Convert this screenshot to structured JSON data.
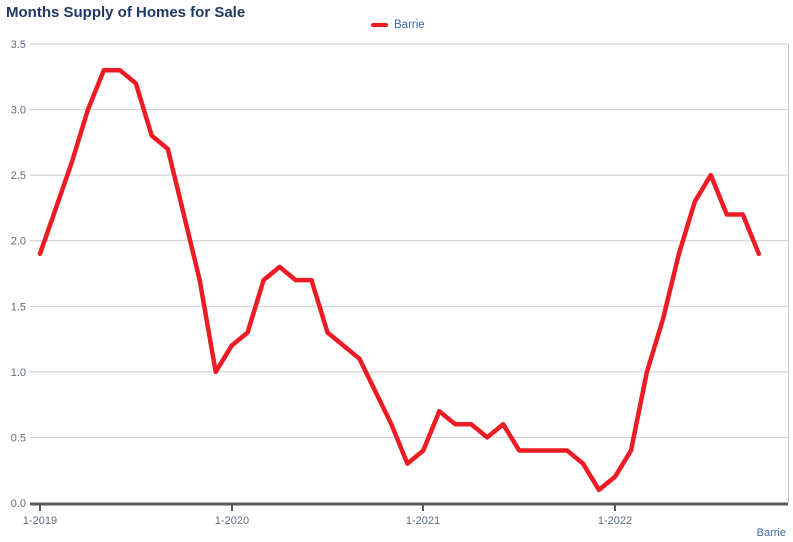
{
  "title": "Months Supply of Homes for Sale",
  "legend": {
    "items": [
      {
        "label": "Barrie",
        "color": "#ED1C24"
      }
    ]
  },
  "bottom_right_label": "Barrie",
  "colors": {
    "background": "#FFFFFF",
    "title": "#1F3864",
    "axis_tick_label": "#5D6B80",
    "blue_label": "#3E68A8",
    "gridline": "#CCCCCC",
    "axis_line": "#595959",
    "series_red": "#ED1C24"
  },
  "chart_data": {
    "type": "line",
    "title": "Months Supply of Homes for Sale",
    "xlabel": "",
    "ylabel": "",
    "ylim": [
      0,
      3.5
    ],
    "y_tick_labels": [
      "0.0",
      "0.5",
      "1.0",
      "1.5",
      "2.0",
      "2.5",
      "3.0",
      "3.5"
    ],
    "y_ticks": [
      0,
      0.5,
      1.0,
      1.5,
      2.0,
      2.5,
      3.0,
      3.5
    ],
    "x_axis_tick_labels": [
      "1-2019",
      "1-2020",
      "1-2021",
      "1-2022"
    ],
    "grid": true,
    "legend_position": "top-center",
    "series": [
      {
        "name": "Barrie",
        "color": "#ED1C24",
        "x": [
          "1-2019",
          "2-2019",
          "3-2019",
          "4-2019",
          "5-2019",
          "6-2019",
          "7-2019",
          "8-2019",
          "9-2019",
          "10-2019",
          "11-2019",
          "12-2019",
          "1-2020",
          "2-2020",
          "3-2020",
          "4-2020",
          "5-2020",
          "6-2020",
          "7-2020",
          "8-2020",
          "9-2020",
          "10-2020",
          "11-2020",
          "12-2020",
          "1-2021",
          "2-2021",
          "3-2021",
          "4-2021",
          "5-2021",
          "6-2021",
          "7-2021",
          "8-2021",
          "9-2021",
          "10-2021",
          "11-2021",
          "12-2021",
          "1-2022",
          "2-2022",
          "3-2022",
          "4-2022",
          "5-2022",
          "6-2022",
          "7-2022",
          "8-2022",
          "9-2022",
          "10-2022"
        ],
        "values": [
          1.9,
          2.25,
          2.6,
          3.0,
          3.3,
          3.3,
          3.2,
          2.8,
          2.7,
          2.2,
          1.7,
          1.0,
          1.2,
          1.3,
          1.7,
          1.8,
          1.7,
          1.7,
          1.3,
          1.2,
          1.1,
          0.85,
          0.6,
          0.3,
          0.4,
          0.7,
          0.6,
          0.6,
          0.5,
          0.6,
          0.4,
          0.4,
          0.4,
          0.4,
          0.3,
          0.1,
          0.2,
          0.4,
          1.0,
          1.4,
          1.9,
          2.3,
          2.5,
          2.2,
          2.2,
          1.9
        ]
      }
    ]
  }
}
